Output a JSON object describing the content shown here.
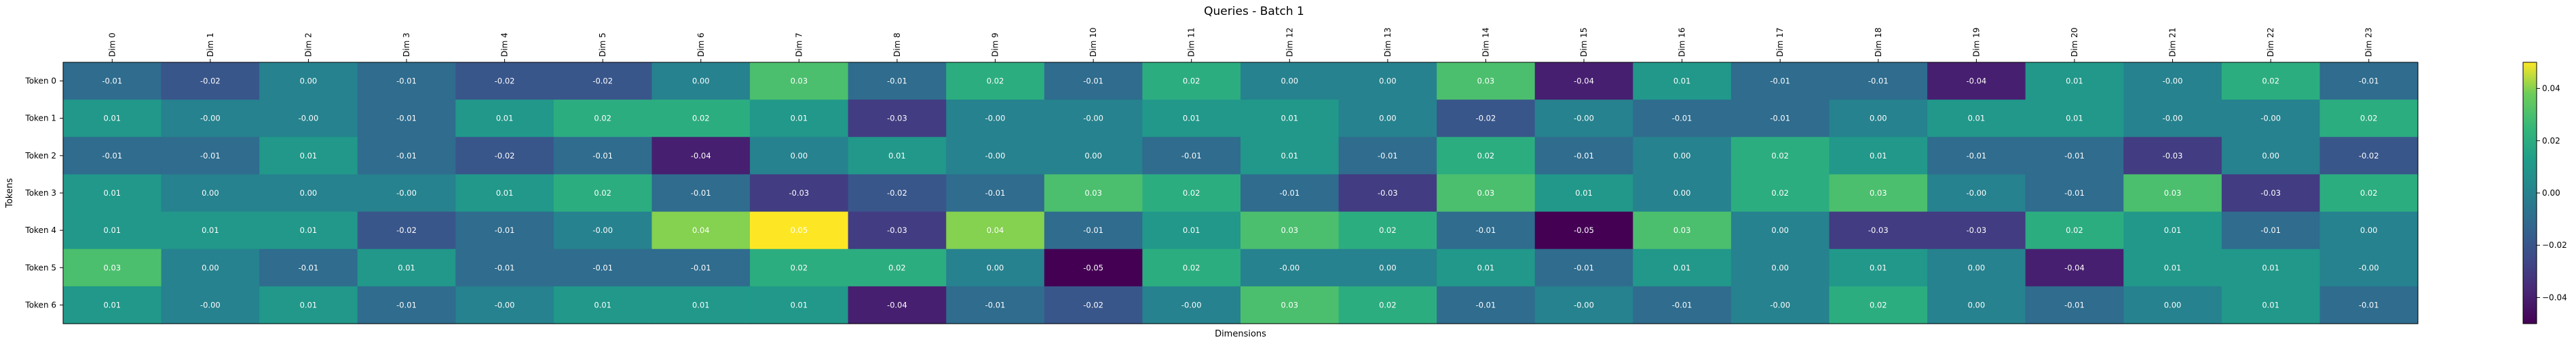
{
  "chart_data": {
    "type": "heatmap",
    "title": "Queries - Batch 1",
    "xlabel": "Dimensions",
    "ylabel": "Tokens",
    "x_categories": [
      "Dim 0",
      "Dim 1",
      "Dim 2",
      "Dim 3",
      "Dim 4",
      "Dim 5",
      "Dim 6",
      "Dim 7",
      "Dim 8",
      "Dim 9",
      "Dim 10",
      "Dim 11",
      "Dim 12",
      "Dim 13",
      "Dim 14",
      "Dim 15",
      "Dim 16",
      "Dim 17",
      "Dim 18",
      "Dim 19",
      "Dim 20",
      "Dim 21",
      "Dim 22",
      "Dim 23"
    ],
    "y_categories": [
      "Token 0",
      "Token 1",
      "Token 2",
      "Token 3",
      "Token 4",
      "Token 5",
      "Token 6"
    ],
    "values": [
      [
        -0.01,
        -0.02,
        0.0,
        -0.01,
        -0.02,
        -0.02,
        0.0,
        0.03,
        -0.01,
        0.02,
        -0.01,
        0.02,
        0.0,
        0.0,
        0.03,
        -0.04,
        0.01,
        -0.01,
        -0.01,
        -0.04,
        0.01,
        -0.0,
        0.02,
        -0.01
      ],
      [
        0.01,
        -0.0,
        -0.0,
        -0.01,
        0.01,
        0.02,
        0.02,
        0.01,
        -0.03,
        -0.0,
        -0.0,
        0.01,
        0.01,
        0.0,
        -0.02,
        -0.0,
        -0.01,
        -0.01,
        0.0,
        0.01,
        0.01,
        -0.0,
        -0.0,
        0.02
      ],
      [
        -0.01,
        -0.01,
        0.01,
        -0.01,
        -0.02,
        -0.01,
        -0.04,
        0.0,
        0.01,
        -0.0,
        0.0,
        -0.01,
        0.01,
        -0.01,
        0.02,
        -0.01,
        0.0,
        0.02,
        0.01,
        -0.01,
        -0.01,
        -0.03,
        0.0,
        -0.02
      ],
      [
        0.01,
        0.0,
        0.0,
        -0.0,
        0.01,
        0.02,
        -0.01,
        -0.03,
        -0.02,
        -0.01,
        0.03,
        0.02,
        -0.01,
        -0.03,
        0.03,
        0.01,
        0.0,
        0.02,
        0.03,
        -0.0,
        -0.01,
        0.03,
        -0.03,
        0.02
      ],
      [
        0.01,
        0.01,
        0.01,
        -0.02,
        -0.01,
        -0.0,
        0.04,
        0.05,
        -0.03,
        0.04,
        -0.01,
        0.01,
        0.03,
        0.02,
        -0.01,
        -0.05,
        0.03,
        0.0,
        -0.03,
        -0.03,
        0.02,
        0.01,
        -0.01,
        0.0
      ],
      [
        0.03,
        0.0,
        -0.01,
        0.01,
        -0.01,
        -0.01,
        -0.01,
        0.02,
        0.02,
        0.0,
        -0.05,
        0.02,
        -0.0,
        0.0,
        0.01,
        -0.01,
        0.01,
        0.0,
        0.01,
        0.0,
        -0.04,
        0.01,
        0.01,
        -0.0
      ],
      [
        0.01,
        -0.0,
        0.01,
        -0.01,
        -0.0,
        0.01,
        0.01,
        0.01,
        -0.04,
        -0.01,
        -0.02,
        -0.0,
        0.03,
        0.02,
        -0.01,
        -0.0,
        -0.01,
        -0.0,
        0.02,
        0.0,
        -0.01,
        0.0,
        0.01,
        -0.01
      ]
    ],
    "colormap": "viridis",
    "vmin": -0.05,
    "vmax": 0.05,
    "colorbar_ticks": [
      "0.04",
      "0.02",
      "0.00",
      "−0.02",
      "−0.04"
    ],
    "colorbar_tick_values": [
      0.04,
      0.02,
      0.0,
      -0.02,
      -0.04
    ],
    "grid": false,
    "annotate": true
  }
}
